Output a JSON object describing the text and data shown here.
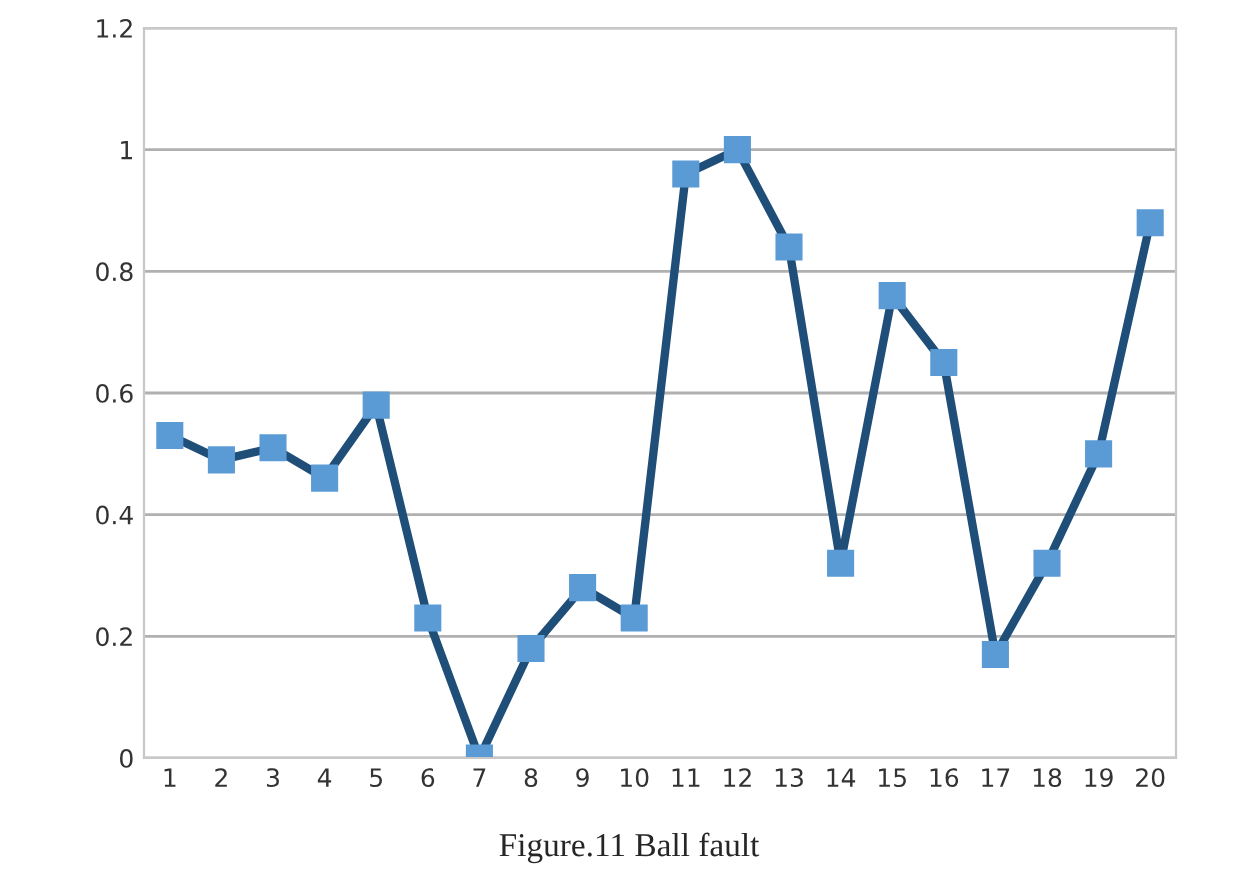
{
  "chart_data": {
    "type": "line",
    "title": "Figure.11 Ball fault",
    "categories": [
      "1",
      "2",
      "3",
      "4",
      "5",
      "6",
      "7",
      "8",
      "9",
      "10",
      "11",
      "12",
      "13",
      "14",
      "15",
      "16",
      "17",
      "18",
      "19",
      "20"
    ],
    "series": [
      {
        "color": "#1f4e79",
        "values": [
          0.53,
          0.49,
          0.51,
          0.46,
          0.58,
          0.23,
          0.0,
          0.18,
          0.28,
          0.23,
          0.96,
          1.0,
          0.84,
          0.32,
          0.76,
          0.65,
          0.17,
          0.32,
          0.5,
          0.88
        ]
      }
    ],
    "ylim": [
      0,
      1.2
    ],
    "yticks": [
      0,
      0.2,
      0.4,
      0.6,
      0.8,
      1,
      1.2
    ],
    "grid": "y",
    "marker": "square",
    "line_style": "solid",
    "legend": false
  }
}
